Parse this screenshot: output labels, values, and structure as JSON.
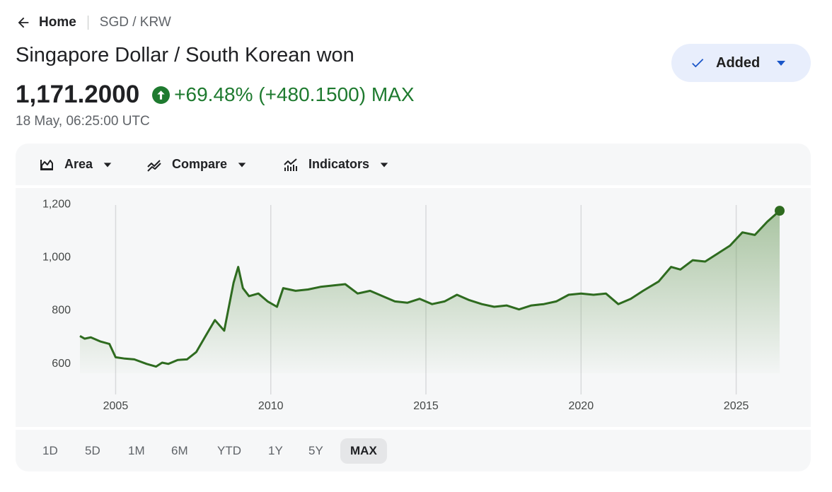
{
  "breadcrumb": {
    "home": "Home",
    "pair": "SGD / KRW"
  },
  "title": "Singapore Dollar / South Korean won",
  "watchlist_button": {
    "label": "Added"
  },
  "quote": {
    "price": "1,171.2000",
    "change": "+69.48% (+480.1500) MAX",
    "timestamp": "18 May, 06:25:00 UTC"
  },
  "toolbar": {
    "area": "Area",
    "compare": "Compare",
    "indicators": "Indicators"
  },
  "ranges": [
    "1D",
    "5D",
    "1M",
    "6M",
    "YTD",
    "1Y",
    "5Y",
    "MAX"
  ],
  "active_range": "MAX",
  "colors": {
    "positive": "#1e7a2f",
    "accent": "#1a56c9",
    "line": "#2e6b1f"
  },
  "icons": {
    "back": "arrow-left-icon",
    "check": "check-icon",
    "caret": "caret-down-icon",
    "up": "arrow-up-circle-icon",
    "area": "area-chart-icon",
    "compare": "compare-icon",
    "indicators": "indicators-icon"
  },
  "chart_data": {
    "type": "area",
    "title": "",
    "xlabel": "",
    "ylabel": "",
    "x_ticks": [
      "2005",
      "2010",
      "2015",
      "2020",
      "2025"
    ],
    "y_ticks": [
      "600",
      "800",
      "1,000",
      "1,200"
    ],
    "ylim": [
      560,
      1230
    ],
    "xlim": [
      2003.85,
      2026.4
    ],
    "grid": "vertical",
    "x": [
      2003.85,
      2004.0,
      2004.2,
      2004.5,
      2004.8,
      2005.0,
      2005.3,
      2005.6,
      2006.0,
      2006.3,
      2006.5,
      2006.7,
      2007.0,
      2007.3,
      2007.6,
      2007.9,
      2008.2,
      2008.5,
      2008.8,
      2008.95,
      2009.1,
      2009.3,
      2009.6,
      2009.9,
      2010.2,
      2010.4,
      2010.8,
      2011.2,
      2011.6,
      2012.0,
      2012.4,
      2012.8,
      2013.2,
      2013.6,
      2014.0,
      2014.4,
      2014.8,
      2015.2,
      2015.6,
      2016.0,
      2016.4,
      2016.8,
      2017.2,
      2017.6,
      2018.0,
      2018.4,
      2018.8,
      2019.2,
      2019.6,
      2020.0,
      2020.4,
      2020.8,
      2021.2,
      2021.6,
      2022.0,
      2022.5,
      2022.9,
      2023.2,
      2023.6,
      2024.0,
      2024.4,
      2024.8,
      2025.2,
      2025.6,
      2026.0,
      2026.4
    ],
    "values": [
      700,
      690,
      695,
      680,
      670,
      620,
      615,
      612,
      595,
      585,
      600,
      595,
      610,
      612,
      640,
      700,
      760,
      720,
      900,
      960,
      880,
      850,
      860,
      830,
      810,
      880,
      870,
      875,
      885,
      890,
      895,
      860,
      870,
      850,
      830,
      825,
      840,
      820,
      830,
      855,
      835,
      820,
      810,
      815,
      800,
      815,
      820,
      830,
      855,
      860,
      855,
      860,
      820,
      840,
      870,
      905,
      960,
      950,
      985,
      980,
      1010,
      1040,
      1090,
      1080,
      1130,
      1171.2
    ]
  }
}
